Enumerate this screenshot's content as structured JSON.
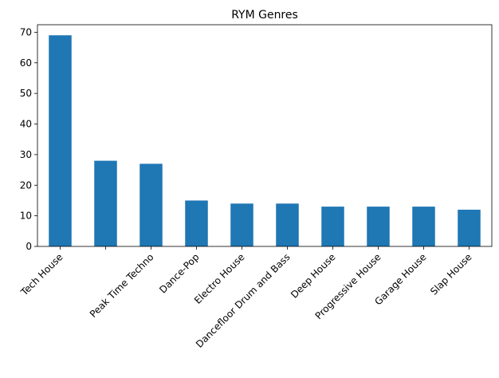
{
  "chart_data": {
    "type": "bar",
    "title": "RYM Genres",
    "categories": [
      "Tech House",
      null,
      "Peak Time Techno",
      "Dance-Pop",
      "Electro House",
      "Dancefloor Drum and Bass",
      "Deep House",
      "Progressive House",
      "Garage House",
      "Slap House"
    ],
    "values": [
      69,
      28,
      27,
      15,
      14,
      14,
      13,
      13,
      13,
      12
    ],
    "color": "#1f77b4",
    "ylim": [
      0,
      72.45
    ],
    "yticks": [
      0,
      10,
      20,
      30,
      40,
      50,
      60,
      70
    ],
    "grid": false
  }
}
